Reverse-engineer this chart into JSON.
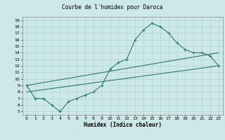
{
  "title": "Courbe de l'humidex pour Daroca",
  "xlabel": "Humidex (Indice chaleur)",
  "bg_color": "#cce8e8",
  "line_color": "#2d7a6e",
  "xlim": [
    -0.5,
    23.5
  ],
  "ylim": [
    4.5,
    19.5
  ],
  "xticks": [
    0,
    1,
    2,
    3,
    4,
    5,
    6,
    7,
    8,
    9,
    10,
    11,
    12,
    13,
    14,
    15,
    16,
    17,
    18,
    19,
    20,
    21,
    22,
    23
  ],
  "yticks": [
    5,
    6,
    7,
    8,
    9,
    10,
    11,
    12,
    13,
    14,
    15,
    16,
    17,
    18,
    19
  ],
  "curve1_x": [
    0,
    1,
    2,
    3,
    4,
    5,
    6,
    7,
    8,
    9,
    10,
    11,
    12,
    13,
    14,
    15,
    16,
    17,
    18,
    19,
    20,
    21,
    22,
    23
  ],
  "curve1_y": [
    9,
    7,
    7,
    6,
    5,
    6.5,
    7,
    7.5,
    8,
    9,
    11.5,
    12.5,
    13,
    16,
    17.5,
    18.5,
    18,
    17,
    15.5,
    14.5,
    14,
    14,
    13.5,
    12
  ],
  "line2_x": [
    0,
    23
  ],
  "line2_y": [
    9,
    14
  ],
  "line3_x": [
    0,
    23
  ],
  "line3_y": [
    8,
    12
  ]
}
